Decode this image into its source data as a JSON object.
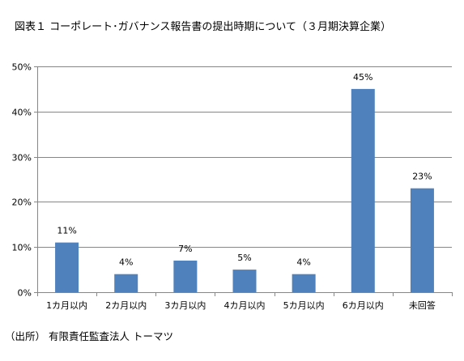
{
  "chart_data": {
    "type": "bar",
    "title": "図表１ コーポレート･ガバナンス報告書の提出時期について（３月期決算企業）",
    "categories": [
      "1カ月以内",
      "2カ月以内",
      "3カ月以内",
      "4カ月以内",
      "5カ月以内",
      "6カ月以内",
      "未回答"
    ],
    "values": [
      11,
      4,
      7,
      5,
      4,
      45,
      23
    ],
    "data_labels": [
      "11%",
      "4%",
      "7%",
      "5%",
      "4%",
      "45%",
      "23%"
    ],
    "ylim": [
      0,
      50
    ],
    "yticks": [
      0,
      10,
      20,
      30,
      40,
      50
    ],
    "ytick_labels": [
      "0%",
      "10%",
      "20%",
      "30%",
      "40%",
      "50%"
    ],
    "xlabel": "",
    "ylabel": "",
    "grid": true,
    "legend": "none",
    "bar_color": "#4F81BD",
    "grid_color": "#868686"
  },
  "source": "（出所） 有限責任監査法人 トーマツ"
}
